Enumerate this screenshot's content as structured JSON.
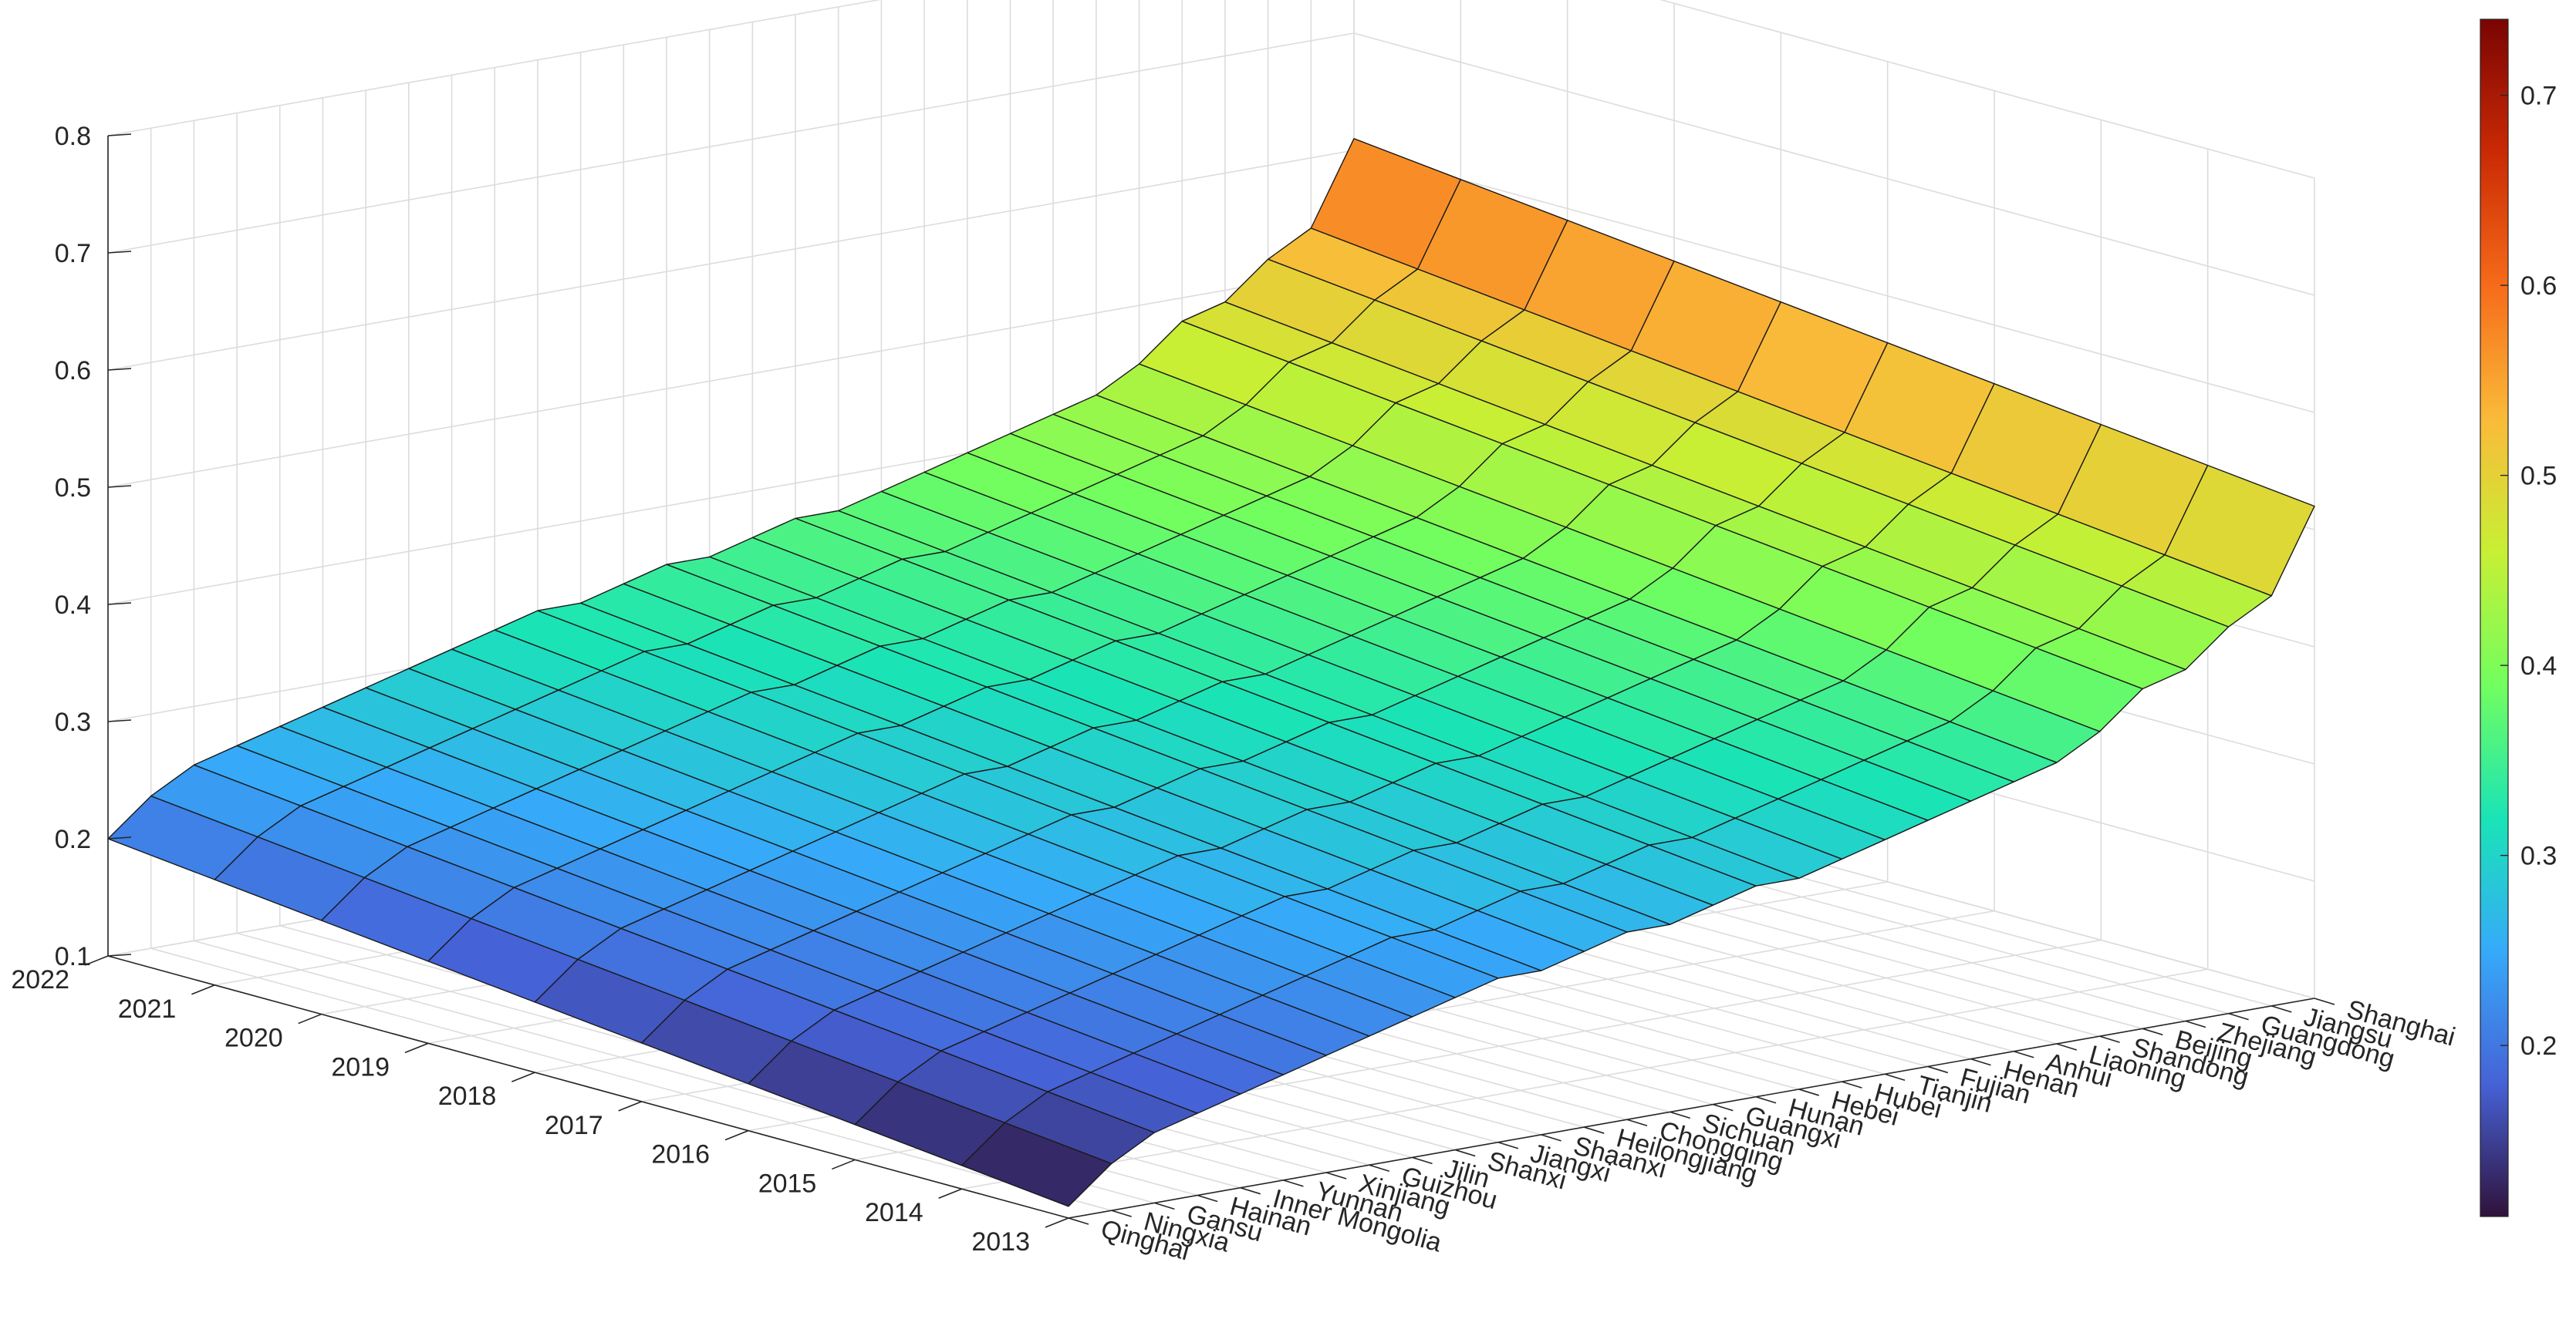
{
  "chart_data": {
    "type": "surface",
    "title": "",
    "xlabel": "",
    "ylabel": "",
    "zlabel": "",
    "zlim": [
      0.1,
      0.8
    ],
    "z_ticks": [
      "0.1",
      "0.2",
      "0.3",
      "0.4",
      "0.5",
      "0.6",
      "0.7",
      "0.8"
    ],
    "colorbar_ticks": [
      "0.2",
      "0.3",
      "0.4",
      "0.5",
      "0.6",
      "0.7"
    ],
    "colorbar_range": [
      0.11,
      0.74
    ],
    "colormap": "turbo",
    "colormap_stops": [
      "#30123b",
      "#4662d7",
      "#36aaf9",
      "#1ae4b6",
      "#72fe5e",
      "#c8ef34",
      "#faba39",
      "#f66b19",
      "#ca2a04",
      "#7a0403"
    ],
    "grid": true,
    "edge_color": "#1a1a1a",
    "years": [
      "2022",
      "2021",
      "2020",
      "2019",
      "2018",
      "2017",
      "2016",
      "2015",
      "2014",
      "2013"
    ],
    "provinces": [
      "Qinghai",
      "Ningxia",
      "Gansu",
      "Hainan",
      "Inner Mongolia",
      "Yunnan",
      "Xinjiang",
      "Guizhou",
      "Jilin",
      "Shanxi",
      "Jiangxi",
      "Shaanxi",
      "Heilongjiang",
      "Chongqing",
      "Sichuan",
      "Guangxi",
      "Hunan",
      "Hebei",
      "Hubei",
      "Tianjin",
      "Fujian",
      "Henan",
      "Anhui",
      "Liaoning",
      "Shandong",
      "Beijing",
      "Zhejiang",
      "Guangdong",
      "Jiangsu",
      "Shanghai"
    ],
    "province_base_2013": [
      0.11,
      0.14,
      0.16,
      0.17,
      0.18,
      0.19,
      0.2,
      0.21,
      0.22,
      0.23,
      0.24,
      0.24,
      0.25,
      0.26,
      0.26,
      0.27,
      0.28,
      0.28,
      0.29,
      0.3,
      0.31,
      0.32,
      0.33,
      0.34,
      0.36,
      0.39,
      0.4,
      0.43,
      0.45,
      0.52
    ],
    "year_increment": [
      0.09,
      0.08,
      0.07,
      0.06,
      0.05,
      0.04,
      0.03,
      0.02,
      0.01,
      0.0
    ],
    "note_z_formula": "value = province_base_2013 + year_increment"
  }
}
